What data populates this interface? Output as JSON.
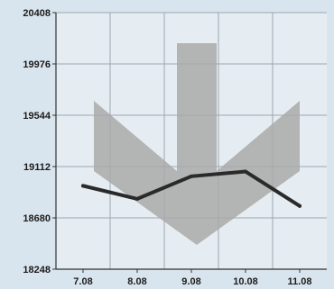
{
  "chart_data": {
    "type": "line",
    "categories": [
      "7.08",
      "8.08",
      "9.08",
      "10.08",
      "11.08"
    ],
    "series": [
      {
        "values": [
          18950,
          18840,
          19030,
          19070,
          18780
        ]
      }
    ],
    "ylim": [
      18248,
      20408
    ],
    "yticks": [
      18248,
      18680,
      19112,
      19544,
      19976,
      20408
    ],
    "grid": true,
    "title": "",
    "xlabel": "",
    "ylabel": ""
  },
  "colors": {
    "background": "#d9e5ee",
    "plot_background": "#e6edf2",
    "gridline": "#9aa6ae",
    "arrow": "#a9a9a9",
    "line": "#2a2a2a"
  },
  "icons": {
    "decoration": "down-arrow-icon"
  }
}
